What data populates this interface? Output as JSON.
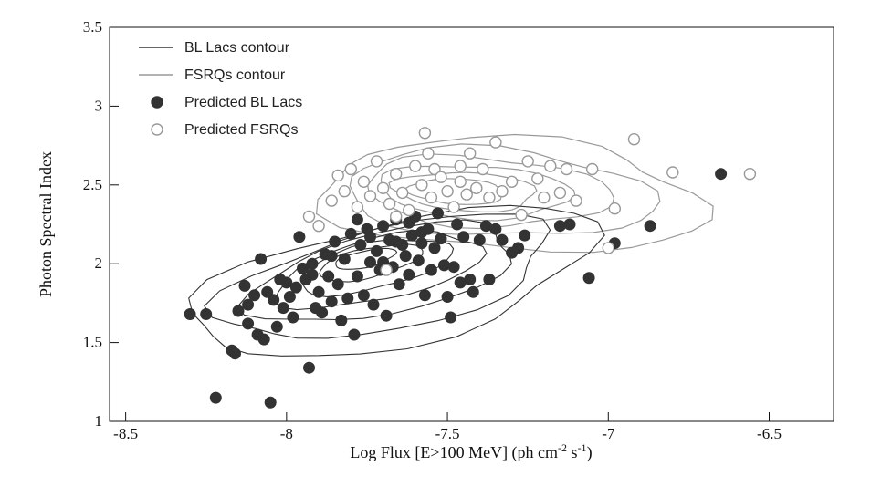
{
  "chart_data": {
    "type": "scatter",
    "xlabel": "Log Flux [E>100 MeV] (ph cm",
    "xlabel_sup1": "-2",
    "xlabel_mid": " s",
    "xlabel_sup2": "-1",
    "xlabel_end": ")",
    "ylabel": "Photon Spectral Index",
    "xlim": [
      -8.55,
      -6.3
    ],
    "ylim": [
      1.0,
      3.5
    ],
    "xticks": [
      -8.5,
      -8,
      -7.5,
      -7,
      -6.5
    ],
    "xtick_labels": [
      "-8.5",
      "-8",
      "-7.5",
      "-7",
      "-6.5"
    ],
    "yticks": [
      1,
      1.5,
      2,
      2.5,
      3,
      3.5
    ],
    "ytick_labels": [
      "1",
      "1.5",
      "2",
      "2.5",
      "3",
      "3.5"
    ],
    "grid": false,
    "legend_position": "top-left",
    "colors": {
      "bll": "#333333",
      "fsrq": "#999999",
      "axis": "#111111"
    },
    "legend": [
      {
        "label": "BL Lacs contour",
        "kind": "line",
        "color": "#333333"
      },
      {
        "label": "FSRQs contour",
        "kind": "line",
        "color": "#999999"
      },
      {
        "label": "Predicted BL Lacs",
        "kind": "filled",
        "color": "#333333"
      },
      {
        "label": "Predicted FSRQs",
        "kind": "open",
        "color": "#999999"
      }
    ],
    "series": [
      {
        "name": "Predicted BL Lacs",
        "marker": "filled",
        "points": [
          [
            -8.3,
            1.68
          ],
          [
            -8.25,
            1.68
          ],
          [
            -8.22,
            1.15
          ],
          [
            -8.17,
            1.45
          ],
          [
            -8.16,
            1.43
          ],
          [
            -8.15,
            1.7
          ],
          [
            -8.13,
            1.86
          ],
          [
            -8.12,
            1.74
          ],
          [
            -8.12,
            1.62
          ],
          [
            -8.1,
            1.8
          ],
          [
            -8.09,
            1.55
          ],
          [
            -8.08,
            2.03
          ],
          [
            -8.07,
            1.52
          ],
          [
            -8.06,
            1.82
          ],
          [
            -8.05,
            1.12
          ],
          [
            -8.04,
            1.77
          ],
          [
            -8.03,
            1.6
          ],
          [
            -8.02,
            1.9
          ],
          [
            -8.01,
            1.72
          ],
          [
            -8.0,
            1.88
          ],
          [
            -7.99,
            1.79
          ],
          [
            -7.98,
            1.66
          ],
          [
            -7.97,
            1.85
          ],
          [
            -7.96,
            2.17
          ],
          [
            -7.95,
            1.97
          ],
          [
            -7.94,
            1.9
          ],
          [
            -7.93,
            1.34
          ],
          [
            -7.92,
            2.0
          ],
          [
            -7.91,
            1.72
          ],
          [
            -7.9,
            1.82
          ],
          [
            -7.89,
            1.69
          ],
          [
            -7.88,
            2.06
          ],
          [
            -7.87,
            1.92
          ],
          [
            -7.86,
            1.76
          ],
          [
            -7.85,
            2.14
          ],
          [
            -7.84,
            1.87
          ],
          [
            -7.83,
            1.64
          ],
          [
            -7.82,
            2.03
          ],
          [
            -7.81,
            1.78
          ],
          [
            -7.8,
            2.19
          ],
          [
            -7.79,
            1.55
          ],
          [
            -7.78,
            1.92
          ],
          [
            -7.77,
            2.12
          ],
          [
            -7.76,
            1.8
          ],
          [
            -7.75,
            2.22
          ],
          [
            -7.74,
            2.01
          ],
          [
            -7.73,
            1.74
          ],
          [
            -7.72,
            2.08
          ],
          [
            -7.71,
            1.96
          ],
          [
            -7.7,
            2.24
          ],
          [
            -7.69,
            1.67
          ],
          [
            -7.68,
            2.15
          ],
          [
            -7.67,
            1.98
          ],
          [
            -7.66,
            2.28
          ],
          [
            -7.65,
            1.87
          ],
          [
            -7.64,
            2.12
          ],
          [
            -7.63,
            2.05
          ],
          [
            -7.62,
            1.93
          ],
          [
            -7.61,
            2.18
          ],
          [
            -7.6,
            2.3
          ],
          [
            -7.59,
            2.02
          ],
          [
            -7.58,
            2.13
          ],
          [
            -7.57,
            1.8
          ],
          [
            -7.56,
            2.22
          ],
          [
            -7.55,
            1.96
          ],
          [
            -7.54,
            2.1
          ],
          [
            -7.53,
            2.32
          ],
          [
            -7.52,
            2.16
          ],
          [
            -7.51,
            1.99
          ],
          [
            -7.5,
            1.79
          ],
          [
            -7.49,
            1.66
          ],
          [
            -7.48,
            1.98
          ],
          [
            -7.47,
            2.25
          ],
          [
            -7.46,
            1.88
          ],
          [
            -7.45,
            2.17
          ],
          [
            -7.43,
            1.9
          ],
          [
            -7.42,
            1.82
          ],
          [
            -7.41,
            2.48
          ],
          [
            -7.4,
            2.15
          ],
          [
            -7.38,
            2.24
          ],
          [
            -7.37,
            1.9
          ],
          [
            -7.35,
            2.22
          ],
          [
            -7.33,
            2.15
          ],
          [
            -7.3,
            2.07
          ],
          [
            -7.28,
            2.1
          ],
          [
            -7.26,
            2.18
          ],
          [
            -7.15,
            2.24
          ],
          [
            -7.12,
            2.25
          ],
          [
            -7.06,
            1.91
          ],
          [
            -6.98,
            2.13
          ],
          [
            -6.87,
            2.24
          ],
          [
            -6.65,
            2.57
          ],
          [
            -7.78,
            2.28
          ],
          [
            -7.74,
            2.17
          ],
          [
            -7.7,
            2.01
          ],
          [
            -7.66,
            2.14
          ],
          [
            -7.62,
            2.26
          ],
          [
            -7.58,
            2.2
          ],
          [
            -7.86,
            2.05
          ],
          [
            -7.92,
            1.93
          ]
        ]
      },
      {
        "name": "Predicted FSRQs",
        "marker": "open",
        "points": [
          [
            -7.93,
            2.3
          ],
          [
            -7.9,
            2.24
          ],
          [
            -7.86,
            2.4
          ],
          [
            -7.84,
            2.56
          ],
          [
            -7.82,
            2.46
          ],
          [
            -7.8,
            2.6
          ],
          [
            -7.78,
            2.36
          ],
          [
            -7.76,
            2.52
          ],
          [
            -7.74,
            2.43
          ],
          [
            -7.72,
            2.65
          ],
          [
            -7.7,
            2.48
          ],
          [
            -7.68,
            2.38
          ],
          [
            -7.66,
            2.57
          ],
          [
            -7.64,
            2.45
          ],
          [
            -7.62,
            2.34
          ],
          [
            -7.6,
            2.62
          ],
          [
            -7.58,
            2.5
          ],
          [
            -7.56,
            2.7
          ],
          [
            -7.55,
            2.42
          ],
          [
            -7.54,
            2.6
          ],
          [
            -7.52,
            2.55
          ],
          [
            -7.5,
            2.46
          ],
          [
            -7.48,
            2.36
          ],
          [
            -7.46,
            2.52
          ],
          [
            -7.44,
            2.44
          ],
          [
            -7.43,
            2.7
          ],
          [
            -7.41,
            2.48
          ],
          [
            -7.39,
            2.6
          ],
          [
            -7.37,
            2.42
          ],
          [
            -7.35,
            2.77
          ],
          [
            -7.33,
            2.46
          ],
          [
            -7.3,
            2.52
          ],
          [
            -7.27,
            2.31
          ],
          [
            -7.25,
            2.65
          ],
          [
            -7.22,
            2.54
          ],
          [
            -7.2,
            2.42
          ],
          [
            -7.18,
            2.62
          ],
          [
            -7.15,
            2.45
          ],
          [
            -7.13,
            2.6
          ],
          [
            -7.1,
            2.4
          ],
          [
            -7.05,
            2.6
          ],
          [
            -7.0,
            2.1
          ],
          [
            -6.98,
            2.35
          ],
          [
            -6.92,
            2.79
          ],
          [
            -6.8,
            2.58
          ],
          [
            -6.56,
            2.57
          ],
          [
            -7.69,
            1.96
          ],
          [
            -7.57,
            2.83
          ],
          [
            -7.66,
            2.3
          ],
          [
            -7.46,
            2.62
          ]
        ]
      }
    ]
  }
}
